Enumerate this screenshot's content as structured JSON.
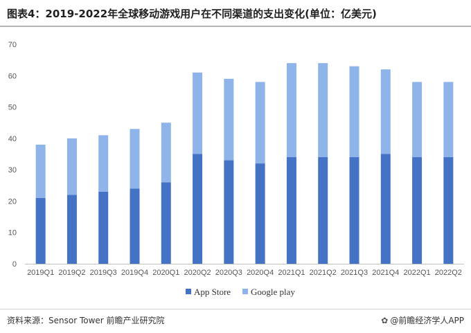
{
  "header": {
    "title": "图表4：2019-2022年全球移动游戏用户在不同渠道的支出变化(单位：亿美元)"
  },
  "footer": {
    "source": "资料来源：Sensor Tower 前瞻产业研究院",
    "brand": "@前瞻经济学人APP",
    "brand_icon": "logo-icon"
  },
  "colors": {
    "app_store": "#4472c4",
    "google_play": "#8fb4ea",
    "axis": "#bfbfbf"
  },
  "chart_data": {
    "type": "bar",
    "stacked": true,
    "title": "2019-2022年全球移动游戏用户在不同渠道的支出变化(单位：亿美元)",
    "categories": [
      "2019Q1",
      "2019Q2",
      "2019Q3",
      "2019Q4",
      "2020Q1",
      "2020Q2",
      "2020Q3",
      "2020Q4",
      "2021Q1",
      "2021Q2",
      "2021Q3",
      "2021Q4",
      "2022Q1",
      "2022Q2"
    ],
    "series": [
      {
        "name": "App Store",
        "values": [
          21,
          22,
          23,
          24,
          26,
          35,
          33,
          32,
          34,
          34,
          34,
          35,
          34,
          34
        ]
      },
      {
        "name": "Google play",
        "values": [
          17,
          18,
          18,
          19,
          19,
          26,
          26,
          26,
          30,
          30,
          29,
          27,
          24,
          24
        ]
      }
    ],
    "ylim": [
      0,
      70
    ],
    "yticks": [
      0,
      10,
      20,
      30,
      40,
      50,
      60,
      70
    ],
    "xlabel": "",
    "ylabel": "",
    "legend_position": "bottom-center",
    "grid": false
  }
}
